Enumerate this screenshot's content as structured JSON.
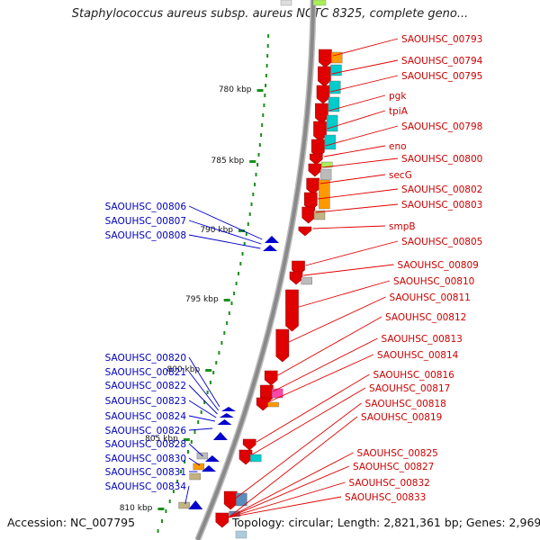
{
  "map": {
    "title": "Staphylococcus aureus subsp. aureus NCTC 8325, complete geno...",
    "accession": "Accession: NC_007795",
    "topology": "Topology: circular; Length: 2,821,361 bp; Genes: 2,969",
    "colors": {
      "backbone": "#8a8a8a",
      "ticks": "#1a8f1a",
      "forward_genes": "#e00000",
      "reverse_genes": "#0000cc"
    }
  },
  "kbp_ticks": [
    "780 kbp",
    "785 kbp",
    "790 kbp",
    "795 kbp",
    "800 kbp",
    "805 kbp",
    "810 kbp"
  ],
  "right_labels": [
    "SAOUHSC_00793",
    "SAOUHSC_00794",
    "SAOUHSC_00795",
    "pgk",
    "tpiA",
    "SAOUHSC_00798",
    "eno",
    "SAOUHSC_00800",
    "secG",
    "SAOUHSC_00802",
    "SAOUHSC_00803",
    "smpB",
    "SAOUHSC_00805",
    "SAOUHSC_00809",
    "SAOUHSC_00810",
    "SAOUHSC_00811",
    "SAOUHSC_00812",
    "SAOUHSC_00813",
    "SAOUHSC_00814",
    "SAOUHSC_00816",
    "SAOUHSC_00817",
    "SAOUHSC_00818",
    "SAOUHSC_00819",
    "SAOUHSC_00825",
    "SAOUHSC_00827",
    "SAOUHSC_00832",
    "SAOUHSC_00833"
  ],
  "left_labels": [
    "SAOUHSC_00806",
    "SAOUHSC_00807",
    "SAOUHSC_00808",
    "SAOUHSC_00820",
    "SAOUHSC_00821",
    "SAOUHSC_00822",
    "SAOUHSC_00823",
    "SAOUHSC_00824",
    "SAOUHSC_00826",
    "SAOUHSC_00828",
    "SAOUHSC_00830",
    "SAOUHSC_00831",
    "SAOUHSC_00834"
  ]
}
